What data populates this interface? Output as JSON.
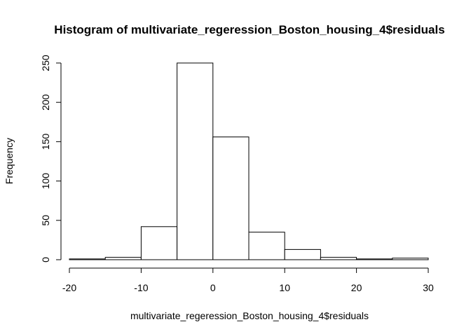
{
  "chart_data": {
    "type": "bar",
    "title": "Histogram of multivariate_regeression_Boston_housing_4$residuals",
    "xlabel": "multivariate_regeression_Boston_housing_4$residuals",
    "ylabel": "Frequency",
    "bin_edges": [
      -20,
      -15,
      -10,
      -5,
      0,
      5,
      10,
      15,
      20,
      25,
      30
    ],
    "values": [
      1,
      3,
      42,
      250,
      156,
      35,
      13,
      3,
      1,
      2
    ],
    "xlim": [
      -20,
      30
    ],
    "ylim": [
      0,
      250
    ],
    "x_ticks": [
      "-20",
      "-10",
      "0",
      "10",
      "20",
      "30"
    ],
    "y_ticks": [
      "0",
      "50",
      "100",
      "150",
      "200",
      "250"
    ],
    "grid": false,
    "legend": "none"
  }
}
